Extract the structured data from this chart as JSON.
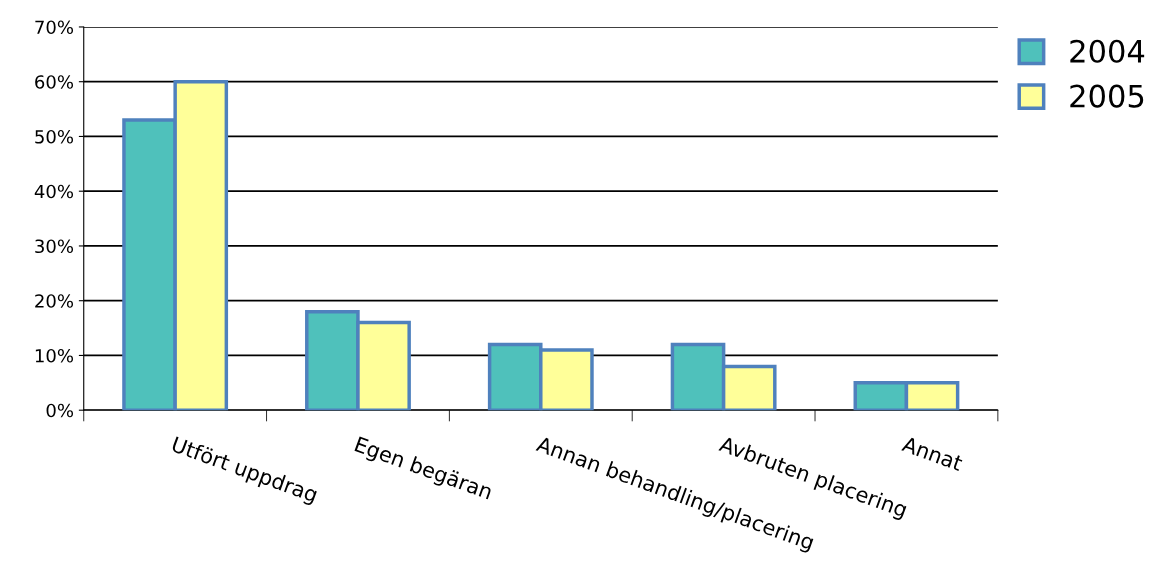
{
  "chart_data": {
    "type": "bar",
    "categories": [
      "Utfört uppdrag",
      "Egen begäran",
      "Annan behandling/placering",
      "Avbruten placering",
      "Annat"
    ],
    "series": [
      {
        "name": "2004",
        "color": "#4fc1bb",
        "values": [
          53,
          18,
          12,
          12,
          5
        ]
      },
      {
        "name": "2005",
        "color": "#ffff99",
        "values": [
          60,
          16,
          11,
          8,
          5
        ]
      }
    ],
    "ylim": [
      0,
      70
    ],
    "yticks": [
      {
        "value": 0,
        "label": "0%"
      },
      {
        "value": 10,
        "label": "10%"
      },
      {
        "value": 20,
        "label": "20%"
      },
      {
        "value": 30,
        "label": "30%"
      },
      {
        "value": 40,
        "label": "40%"
      },
      {
        "value": 50,
        "label": "50%"
      },
      {
        "value": 60,
        "label": "60%"
      },
      {
        "value": 70,
        "label": "70%"
      }
    ],
    "grid": "y",
    "legend": "top right"
  }
}
